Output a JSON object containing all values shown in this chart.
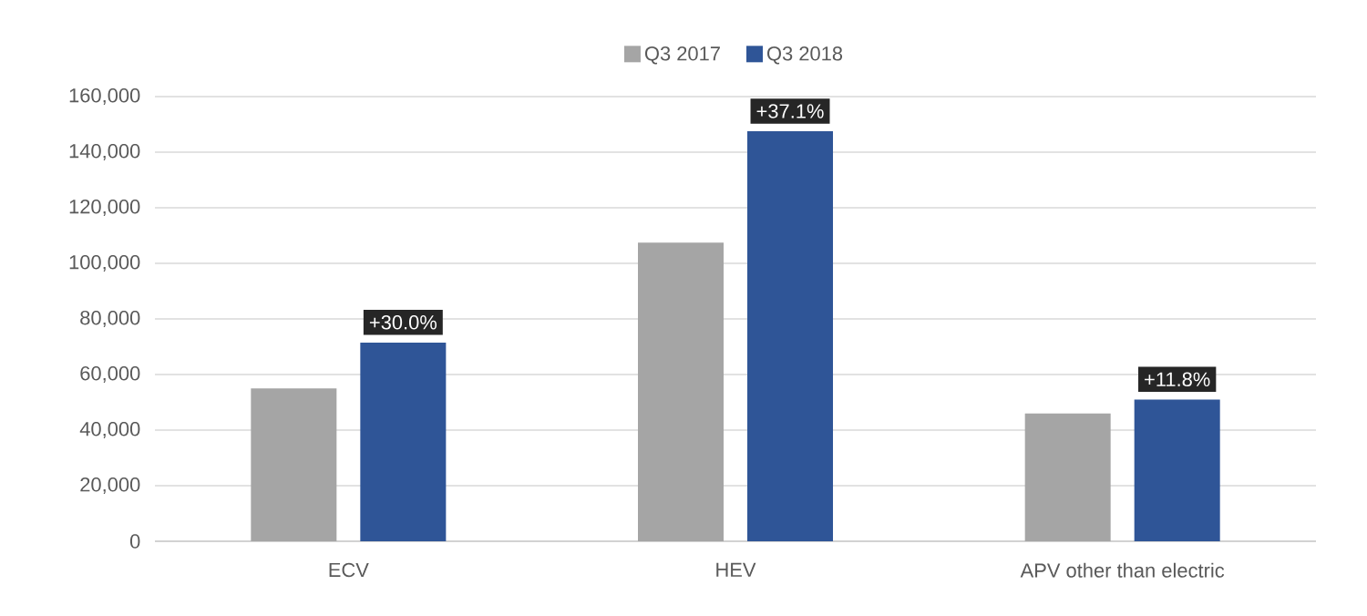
{
  "chart_data": {
    "type": "bar",
    "categories": [
      "ECV",
      "HEV",
      "APV other than electric"
    ],
    "series": [
      {
        "name": "Q3 2017",
        "color": "#a5a5a5",
        "values": [
          55000,
          107500,
          46000
        ]
      },
      {
        "name": "Q3 2018",
        "color": "#2f5597",
        "values": [
          71500,
          147500,
          51000
        ]
      }
    ],
    "ylim": [
      0,
      160000
    ],
    "yticks": [
      0,
      {
        "value": 20000,
        "label": "20,000"
      },
      {
        "value": 40000,
        "label": "40,000"
      },
      {
        "value": 60000,
        "label": "60,000"
      },
      {
        "value": 80000,
        "label": "80,000"
      },
      {
        "value": 100000,
        "label": "100,000"
      },
      {
        "value": 120000,
        "label": "120,000"
      },
      {
        "value": 140000,
        "label": "140,000"
      },
      {
        "value": 160000,
        "label": "160,000"
      }
    ],
    "grid": "y",
    "legend": "top",
    "annotations": [
      "+30.0%",
      "+37.1%",
      "+11.8%"
    ]
  }
}
